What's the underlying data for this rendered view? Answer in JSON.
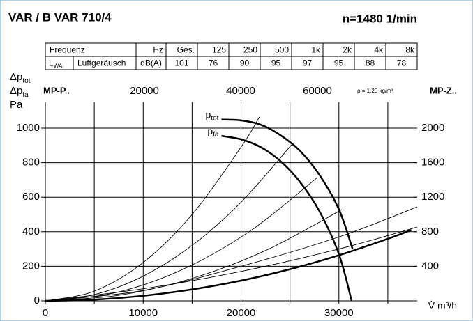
{
  "chart_data": {
    "type": "line",
    "title": "VAR / B VAR 710/4",
    "speed": "n=1480 1/min",
    "table": {
      "header": [
        "Frequenz",
        "Hz",
        "Ges.",
        "125",
        "250",
        "500",
        "1k",
        "2k",
        "4k",
        "8k"
      ],
      "row_symbol": "L",
      "row_symbol_sub": "WA",
      "row": [
        "Luftgeräusch",
        "dB(A)",
        "101",
        "76",
        "90",
        "95",
        "97",
        "95",
        "88",
        "78"
      ]
    },
    "ylabel": [
      {
        "text": "Δp",
        "sub": "tot"
      },
      {
        "text": "Δp",
        "sub": "fa"
      },
      {
        "text": "Pa",
        "sub": null
      }
    ],
    "xlabel": "V̇ m³/h",
    "density": "ρ = 1,20 kg/m³",
    "top_labels": [
      "MP-P..",
      "20000",
      "40000",
      "60000",
      "MP-Z.."
    ],
    "xlim": [
      0,
      38000
    ],
    "ylim": [
      0,
      1150
    ],
    "y2lim": [
      0,
      2300
    ],
    "xticks": [
      0,
      10000,
      20000,
      30000
    ],
    "xgrid": [
      0,
      5000,
      10000,
      15000,
      20000,
      25000,
      30000,
      35000
    ],
    "yticks": [
      0,
      200,
      400,
      600,
      800,
      1000
    ],
    "y2ticks": [
      400,
      800,
      1200,
      1600,
      2000
    ],
    "grid": true,
    "series": [
      {
        "name": "p",
        "sub": "tot",
        "color": "#000",
        "width": 2.5,
        "x": [
          18000,
          20000,
          22000,
          24000,
          26000,
          28000,
          30000,
          31400
        ],
        "y": [
          1050,
          1045,
          1020,
          960,
          870,
          730,
          530,
          300
        ]
      },
      {
        "name": "p",
        "sub": "fa",
        "color": "#000",
        "width": 2.5,
        "x": [
          18000,
          20000,
          22000,
          24000,
          26000,
          28000,
          30000,
          31300
        ],
        "y": [
          955,
          935,
          890,
          810,
          690,
          520,
          270,
          0
        ]
      },
      {
        "color": "#000",
        "width": 2.5,
        "x": [
          0,
          5000,
          10000,
          15000,
          20000,
          25000,
          30000,
          35000,
          37400
        ],
        "y": [
          0,
          7,
          29,
          66,
          117,
          183,
          264,
          359,
          410
        ]
      },
      {
        "color": "#000",
        "width": 0.9,
        "x": [
          0,
          5000,
          10000,
          15000,
          20000,
          21880
        ],
        "y": [
          0,
          56,
          222,
          500,
          890,
          1065
        ]
      },
      {
        "color": "#000",
        "width": 0.9,
        "x": [
          0,
          5000,
          10000,
          15000,
          20000,
          25160
        ],
        "y": [
          0,
          36,
          143,
          321,
          571,
          903
        ]
      },
      {
        "color": "#000",
        "width": 0.9,
        "x": [
          0,
          7000,
          14000,
          21000,
          27800
        ],
        "y": [
          0,
          45,
          181,
          407,
          714
        ]
      },
      {
        "color": "#000",
        "width": 0.9,
        "x": [
          0,
          7500,
          15000,
          22500,
          30290
        ],
        "y": [
          0,
          32,
          130,
          291,
          528
        ]
      },
      {
        "color": "#000",
        "width": 0.9,
        "x": [
          0,
          10000,
          20000,
          30000,
          38000
        ],
        "y": [
          0,
          60,
          200,
          370,
          544
        ]
      },
      {
        "color": "#000",
        "width": 0.9,
        "x": [
          0,
          10000,
          20000,
          30000,
          38000
        ],
        "y": [
          0,
          70,
          170,
          300,
          427
        ]
      }
    ],
    "colors": {
      "speed": "#e3001b",
      "total": "#e3001b",
      "top": "#2a9a3c",
      "y2": "#1a9ad6"
    }
  }
}
